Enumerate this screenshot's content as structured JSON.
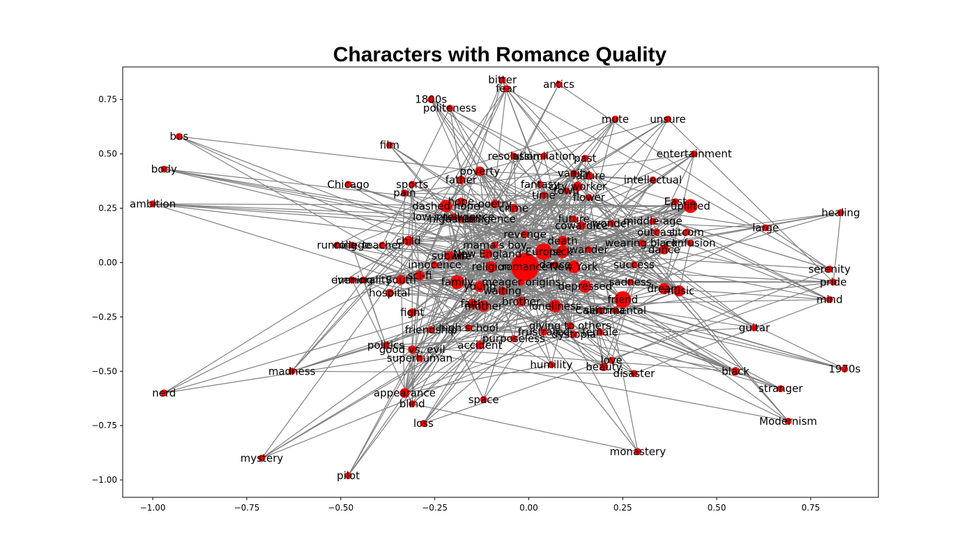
{
  "chart_data": {
    "type": "network",
    "title": "Characters with Romance Quality",
    "xlim": [
      -1.08,
      0.93
    ],
    "ylim": [
      -1.08,
      0.9
    ],
    "x_ticks": [
      -1.0,
      -0.75,
      -0.5,
      -0.25,
      0.0,
      0.25,
      0.5,
      0.75
    ],
    "x_tick_labels": [
      "−1.00",
      "−0.75",
      "−0.50",
      "−0.25",
      "0.00",
      "0.25",
      "0.50",
      "0.75"
    ],
    "y_ticks": [
      0.75,
      0.5,
      0.25,
      0.0,
      -0.25,
      -0.5,
      -0.75,
      -1.0
    ],
    "y_tick_labels": [
      "0.75",
      "0.50",
      "0.25",
      "0.00",
      "−0.25",
      "−0.50",
      "−0.75",
      "−1.00"
    ],
    "node_color": "#ff0000",
    "edge_color": "#808080",
    "nodes": [
      {
        "label": "romance",
        "x": -0.01,
        "y": -0.02,
        "size": 20
      },
      {
        "label": "Europe",
        "x": 0.04,
        "y": 0.05,
        "size": 12
      },
      {
        "label": "New York",
        "x": 0.12,
        "y": -0.02,
        "size": 9
      },
      {
        "label": "friend",
        "x": 0.25,
        "y": -0.17,
        "size": 12
      },
      {
        "label": "uplifted",
        "x": 0.43,
        "y": 0.26,
        "size": 10
      },
      {
        "label": "family",
        "x": -0.19,
        "y": -0.09,
        "size": 10
      },
      {
        "label": "depressed",
        "x": 0.15,
        "y": -0.11,
        "size": 9
      },
      {
        "label": "dashed hope",
        "x": -0.22,
        "y": 0.26,
        "size": 9
      },
      {
        "label": "bitter",
        "x": -0.07,
        "y": 0.84,
        "size": 5
      },
      {
        "label": "fear",
        "x": -0.06,
        "y": 0.8,
        "size": 5
      },
      {
        "label": "antics",
        "x": 0.08,
        "y": 0.82,
        "size": 5
      },
      {
        "label": "1800s",
        "x": -0.26,
        "y": 0.75,
        "size": 5
      },
      {
        "label": "politeness",
        "x": -0.21,
        "y": 0.71,
        "size": 5
      },
      {
        "label": "mute",
        "x": 0.23,
        "y": 0.66,
        "size": 5
      },
      {
        "label": "unsure",
        "x": 0.37,
        "y": 0.66,
        "size": 5
      },
      {
        "label": "bus",
        "x": -0.93,
        "y": 0.58,
        "size": 5
      },
      {
        "label": "film",
        "x": -0.37,
        "y": 0.54,
        "size": 5
      },
      {
        "label": "resolution",
        "x": -0.04,
        "y": 0.49,
        "size": 5
      },
      {
        "label": "assimilation",
        "x": 0.04,
        "y": 0.49,
        "size": 5
      },
      {
        "label": "past",
        "x": 0.15,
        "y": 0.48,
        "size": 5
      },
      {
        "label": "entertainment",
        "x": 0.44,
        "y": 0.5,
        "size": 5
      },
      {
        "label": "body",
        "x": -0.97,
        "y": 0.43,
        "size": 5
      },
      {
        "label": "poverty",
        "x": -0.13,
        "y": 0.42,
        "size": 7
      },
      {
        "label": "vanity",
        "x": 0.12,
        "y": 0.41,
        "size": 5
      },
      {
        "label": "failure",
        "x": 0.16,
        "y": 0.4,
        "size": 6
      },
      {
        "label": "father",
        "x": -0.18,
        "y": 0.38,
        "size": 6
      },
      {
        "label": "intellectual",
        "x": 0.33,
        "y": 0.38,
        "size": 5
      },
      {
        "label": "fantasy",
        "x": 0.03,
        "y": 0.36,
        "size": 5
      },
      {
        "label": "Chicago",
        "x": -0.48,
        "y": 0.36,
        "size": 5
      },
      {
        "label": "sports",
        "x": -0.31,
        "y": 0.36,
        "size": 5
      },
      {
        "label": "city worker",
        "x": 0.13,
        "y": 0.35,
        "size": 7
      },
      {
        "label": "town",
        "x": 0.1,
        "y": 0.33,
        "size": 5
      },
      {
        "label": "pain",
        "x": -0.33,
        "y": 0.32,
        "size": 5
      },
      {
        "label": "time",
        "x": 0.04,
        "y": 0.31,
        "size": 5
      },
      {
        "label": "flower",
        "x": 0.16,
        "y": 0.3,
        "size": 5
      },
      {
        "label": "ambition",
        "x": -1.0,
        "y": 0.27,
        "size": 5
      },
      {
        "label": "East",
        "x": 0.39,
        "y": 0.28,
        "size": 5
      },
      {
        "label": "hope",
        "x": -0.18,
        "y": 0.28,
        "size": 6
      },
      {
        "label": "poetry",
        "x": -0.09,
        "y": 0.27,
        "size": 6
      },
      {
        "label": "crime",
        "x": -0.04,
        "y": 0.25,
        "size": 6
      },
      {
        "label": "healing",
        "x": 0.83,
        "y": 0.23,
        "size": 5
      },
      {
        "label": "low intelligence",
        "x": -0.2,
        "y": 0.21,
        "size": 5
      },
      {
        "label": "high intelligence",
        "x": -0.15,
        "y": 0.2,
        "size": 5
      },
      {
        "label": "fashion",
        "x": -0.18,
        "y": 0.2,
        "size": 5
      },
      {
        "label": "future",
        "x": 0.12,
        "y": 0.2,
        "size": 5
      },
      {
        "label": "middle-age",
        "x": 0.33,
        "y": 0.19,
        "size": 5
      },
      {
        "label": "cowardice",
        "x": 0.14,
        "y": 0.17,
        "size": 6
      },
      {
        "label": "wonder",
        "x": 0.22,
        "y": 0.18,
        "size": 5
      },
      {
        "label": "large",
        "x": 0.63,
        "y": 0.16,
        "size": 5
      },
      {
        "label": "outcast",
        "x": 0.34,
        "y": 0.14,
        "size": 5
      },
      {
        "label": "sitcom",
        "x": 0.42,
        "y": 0.14,
        "size": 5
      },
      {
        "label": "revenge",
        "x": -0.01,
        "y": 0.13,
        "size": 5
      },
      {
        "label": "child",
        "x": -0.32,
        "y": 0.1,
        "size": 7
      },
      {
        "label": "death",
        "x": 0.09,
        "y": 0.1,
        "size": 7
      },
      {
        "label": "wearing black",
        "x": 0.3,
        "y": 0.09,
        "size": 5
      },
      {
        "label": "confusion",
        "x": 0.43,
        "y": 0.09,
        "size": 5
      },
      {
        "label": "running",
        "x": -0.51,
        "y": 0.08,
        "size": 5
      },
      {
        "label": "college",
        "x": -0.47,
        "y": 0.08,
        "size": 5
      },
      {
        "label": "teacher",
        "x": -0.39,
        "y": 0.08,
        "size": 5
      },
      {
        "label": "mama's boy",
        "x": -0.09,
        "y": 0.08,
        "size": 5
      },
      {
        "label": "sick",
        "x": 0.09,
        "y": 0.05,
        "size": 9
      },
      {
        "label": "wander",
        "x": 0.16,
        "y": 0.06,
        "size": 5
      },
      {
        "label": "dance",
        "x": 0.36,
        "y": 0.06,
        "size": 7
      },
      {
        "label": "New England",
        "x": -0.11,
        "y": 0.04,
        "size": 7
      },
      {
        "label": "suburb",
        "x": -0.21,
        "y": 0.03,
        "size": 7
      },
      {
        "label": "wife",
        "x": -0.18,
        "y": 0.03,
        "size": 5
      },
      {
        "label": "innocence",
        "x": -0.25,
        "y": -0.01,
        "size": 5
      },
      {
        "label": "success",
        "x": 0.28,
        "y": -0.01,
        "size": 5
      },
      {
        "label": "religion",
        "x": -0.1,
        "y": -0.02,
        "size": 8
      },
      {
        "label": "dance",
        "x": 0.07,
        "y": -0.01,
        "size": 5
      },
      {
        "label": "sci-fi",
        "x": -0.29,
        "y": -0.06,
        "size": 7
      },
      {
        "label": "South",
        "x": -0.34,
        "y": -0.08,
        "size": 7
      },
      {
        "label": "evening",
        "x": -0.47,
        "y": -0.08,
        "size": 5
      },
      {
        "label": "immorality",
        "x": -0.44,
        "y": -0.08,
        "size": 5
      },
      {
        "label": "meager origins",
        "x": -0.02,
        "y": -0.09,
        "size": 5
      },
      {
        "label": "sadness",
        "x": 0.27,
        "y": -0.09,
        "size": 5
      },
      {
        "label": "young",
        "x": -0.13,
        "y": -0.11,
        "size": 8
      },
      {
        "label": "waiting",
        "x": -0.07,
        "y": -0.13,
        "size": 6
      },
      {
        "label": "dream",
        "x": 0.36,
        "y": -0.12,
        "size": 8
      },
      {
        "label": "music",
        "x": 0.4,
        "y": -0.13,
        "size": 8
      },
      {
        "label": "serenity",
        "x": 0.8,
        "y": -0.03,
        "size": 5
      },
      {
        "label": "pride",
        "x": 0.81,
        "y": -0.09,
        "size": 5
      },
      {
        "label": "hospital",
        "x": -0.37,
        "y": -0.14,
        "size": 6
      },
      {
        "label": "mind",
        "x": 0.8,
        "y": -0.17,
        "size": 5
      },
      {
        "label": "faith",
        "x": -0.15,
        "y": -0.19,
        "size": 7
      },
      {
        "label": "brother",
        "x": -0.02,
        "y": -0.18,
        "size": 7
      },
      {
        "label": "mother",
        "x": -0.12,
        "y": -0.2,
        "size": 8
      },
      {
        "label": "loneliness",
        "x": 0.07,
        "y": -0.2,
        "size": 9
      },
      {
        "label": "California",
        "x": 0.19,
        "y": -0.22,
        "size": 5
      },
      {
        "label": "sentimental",
        "x": 0.23,
        "y": -0.22,
        "size": 5
      },
      {
        "label": "fight",
        "x": -0.31,
        "y": -0.23,
        "size": 6
      },
      {
        "label": "giving to others",
        "x": 0.11,
        "y": -0.29,
        "size": 5
      },
      {
        "label": "guitar",
        "x": 0.6,
        "y": -0.3,
        "size": 5
      },
      {
        "label": "friendship",
        "x": -0.26,
        "y": -0.31,
        "size": 5
      },
      {
        "label": "high school",
        "x": -0.16,
        "y": -0.3,
        "size": 5
      },
      {
        "label": "frustrated",
        "x": 0.04,
        "y": -0.32,
        "size": 5
      },
      {
        "label": "dystopia",
        "x": 0.12,
        "y": -0.33,
        "size": 5
      },
      {
        "label": "female",
        "x": 0.19,
        "y": -0.32,
        "size": 5
      },
      {
        "label": "purposeless",
        "x": -0.04,
        "y": -0.35,
        "size": 5
      },
      {
        "label": "accident",
        "x": -0.13,
        "y": -0.38,
        "size": 6
      },
      {
        "label": "politics",
        "x": -0.38,
        "y": -0.38,
        "size": 5
      },
      {
        "label": "good vs. evil",
        "x": -0.31,
        "y": -0.4,
        "size": 6
      },
      {
        "label": "superhuman",
        "x": -0.29,
        "y": -0.44,
        "size": 5
      },
      {
        "label": "humility",
        "x": 0.06,
        "y": -0.47,
        "size": 5
      },
      {
        "label": "love",
        "x": 0.22,
        "y": -0.45,
        "size": 5
      },
      {
        "label": "beauty",
        "x": 0.2,
        "y": -0.48,
        "size": 6
      },
      {
        "label": "disaster",
        "x": 0.28,
        "y": -0.51,
        "size": 5
      },
      {
        "label": "black",
        "x": 0.55,
        "y": -0.5,
        "size": 6
      },
      {
        "label": "1970s",
        "x": 0.84,
        "y": -0.49,
        "size": 5
      },
      {
        "label": "madness",
        "x": -0.63,
        "y": -0.5,
        "size": 5
      },
      {
        "label": "stranger",
        "x": 0.67,
        "y": -0.58,
        "size": 5
      },
      {
        "label": "nerd",
        "x": -0.97,
        "y": -0.6,
        "size": 5
      },
      {
        "label": "appearance",
        "x": -0.33,
        "y": -0.6,
        "size": 7
      },
      {
        "label": "blind",
        "x": -0.31,
        "y": -0.65,
        "size": 5
      },
      {
        "label": "space",
        "x": -0.12,
        "y": -0.63,
        "size": 5
      },
      {
        "label": "Modernism",
        "x": 0.69,
        "y": -0.73,
        "size": 5
      },
      {
        "label": "loss",
        "x": -0.28,
        "y": -0.74,
        "size": 5
      },
      {
        "label": "monastery",
        "x": 0.29,
        "y": -0.87,
        "size": 5
      },
      {
        "label": "mystery",
        "x": -0.71,
        "y": -0.9,
        "size": 5
      },
      {
        "label": "pilot",
        "x": -0.48,
        "y": -0.98,
        "size": 5
      }
    ]
  }
}
